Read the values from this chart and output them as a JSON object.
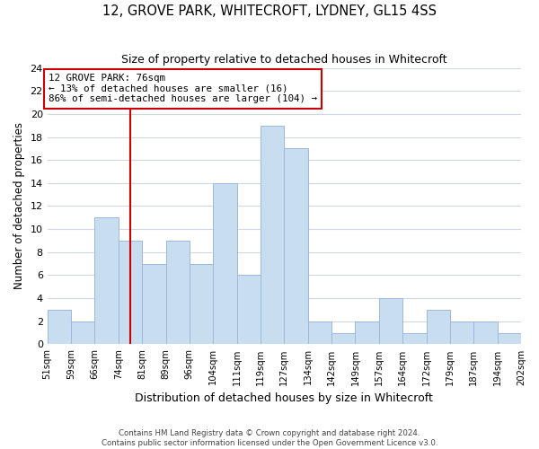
{
  "title": "12, GROVE PARK, WHITECROFT, LYDNEY, GL15 4SS",
  "subtitle": "Size of property relative to detached houses in Whitecroft",
  "xlabel": "Distribution of detached houses by size in Whitecroft",
  "ylabel": "Number of detached properties",
  "bin_labels": [
    "51sqm",
    "59sqm",
    "66sqm",
    "74sqm",
    "81sqm",
    "89sqm",
    "96sqm",
    "104sqm",
    "111sqm",
    "119sqm",
    "127sqm",
    "134sqm",
    "142sqm",
    "149sqm",
    "157sqm",
    "164sqm",
    "172sqm",
    "179sqm",
    "187sqm",
    "194sqm",
    "202sqm"
  ],
  "values": [
    3,
    2,
    11,
    9,
    7,
    9,
    7,
    14,
    6,
    19,
    17,
    2,
    1,
    2,
    4,
    1,
    3,
    2,
    2,
    1
  ],
  "bar_color": "#c9ddf0",
  "bar_edge_color": "#9db9d8",
  "vline_bar_index": 3.5,
  "vline_color": "#cc0000",
  "annotation_text": "12 GROVE PARK: 76sqm\n← 13% of detached houses are smaller (16)\n86% of semi-detached houses are larger (104) →",
  "annotation_box_color": "#ffffff",
  "annotation_box_edge": "#cc0000",
  "ylim": [
    0,
    24
  ],
  "yticks": [
    0,
    2,
    4,
    6,
    8,
    10,
    12,
    14,
    16,
    18,
    20,
    22,
    24
  ],
  "footer_line1": "Contains HM Land Registry data © Crown copyright and database right 2024.",
  "footer_line2": "Contains public sector information licensed under the Open Government Licence v3.0.",
  "background_color": "#ffffff",
  "grid_color": "#d0d8e4"
}
